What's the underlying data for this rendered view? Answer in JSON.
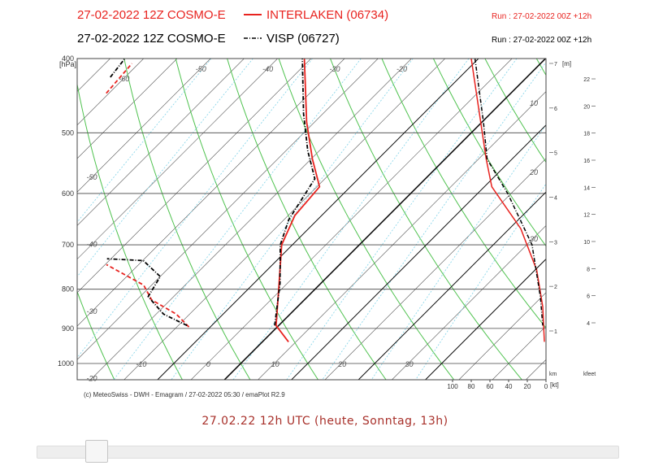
{
  "chart_data": {
    "type": "emagram",
    "model": "27-02-2022 12Z COSMO-E",
    "run": "Run : 27-02-2022 00Z +12h",
    "y_label": "[hPa]",
    "log_y": true,
    "ylim": [
      400,
      1050
    ],
    "yticks": [
      400,
      500,
      600,
      700,
      800,
      900,
      1000
    ],
    "xlim": [
      -22,
      48
    ],
    "xticks": [
      -10,
      0,
      10,
      20,
      30
    ],
    "top_isotherm_labels": [
      -60,
      -50,
      -40,
      -30,
      -20
    ],
    "left_isotherm_labels": [
      -50,
      -40,
      -30,
      -20
    ],
    "adiabat_labels": [
      10,
      20,
      30
    ],
    "series": [
      {
        "name": "INTERLAKEN (06734)",
        "color": "#e8231f",
        "style": "solid",
        "temperature": {
          "pressure": [
            937,
            892,
            809,
            700,
            641,
            588,
            541,
            484,
            400
          ],
          "values": [
            3.9,
            -0.4,
            -4.9,
            -11.6,
            -14,
            -14.6,
            -19.8,
            -26.2,
            -36
          ]
        },
        "dewpoint": {
          "pressure": [
            896,
            862,
            826,
            790,
            743,
            null,
            444,
            406
          ],
          "values": [
            -13.2,
            -17,
            -22.8,
            -26.2,
            -34.8,
            null,
            -60.4,
            -61
          ]
        },
        "wind_speed": {
          "pressure": [
            400,
            541,
            588,
            667,
            755,
            843,
            937
          ],
          "values": [
            80,
            64,
            58,
            27,
            10,
            3.5,
            1.7
          ]
        }
      },
      {
        "name": "VISP (06727)",
        "color": "#000000",
        "style": "dashdot",
        "temperature": {
          "pressure": [
            892,
            786,
            700,
            649,
            574,
            528,
            472,
            400
          ],
          "values": [
            -0.6,
            -6.1,
            -11.8,
            -14.3,
            -16.5,
            -21.7,
            -27.9,
            -36.3
          ]
        },
        "dewpoint": {
          "pressure": [
            892,
            862,
            818,
            770,
            734,
            730,
            null,
            423,
            400
          ],
          "values": [
            -13.7,
            -18.9,
            -23.8,
            -25,
            -29.9,
            -35.6,
            null,
            -62.2,
            -62.8
          ]
        },
        "wind_speed": {
          "pressure": [
            400,
            484,
            541,
            600,
            700,
            819,
            892
          ],
          "values": [
            76,
            67,
            63,
            41,
            15,
            6,
            3.5
          ]
        }
      }
    ],
    "wind_label": "[kt]",
    "wind_lim": [
      0,
      100
    ],
    "wind_ticks": [
      100,
      80,
      60,
      40,
      20,
      0
    ],
    "height_label": "[m]",
    "height_unit": "km",
    "height_ticks": [
      1,
      2,
      3,
      4,
      5,
      6,
      7
    ],
    "kfeet_label": "kfeet",
    "kfeet_ticks": [
      4,
      6,
      8,
      10,
      12,
      14,
      16,
      18,
      20,
      22
    ],
    "footer": "(c) MeteoSwiss - DWH - Emagram / 27-02-2022  05:30 / emaPlot R2.9"
  },
  "caption": "27.02.22 12h UTC (heute, Sonntag, 13h)"
}
